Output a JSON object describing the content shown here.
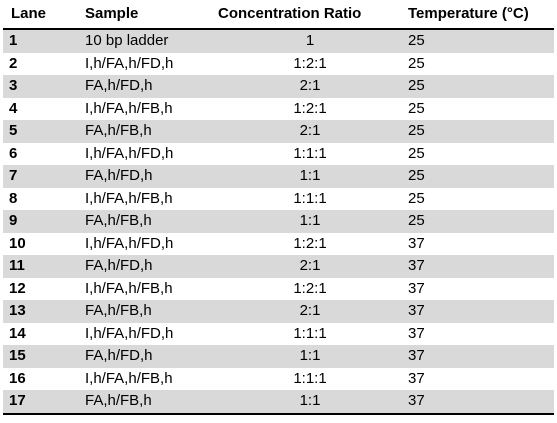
{
  "table": {
    "headers": {
      "lane": "Lane",
      "sample": "Sample",
      "ratio": "Concentration Ratio",
      "temperature": "Temperature (°C)"
    },
    "rows": [
      {
        "lane": "1",
        "sample": "10 bp ladder",
        "ratio": "1",
        "temperature": "25"
      },
      {
        "lane": "2",
        "sample": "I,h/FA,h/FD,h",
        "ratio": "1:2:1",
        "temperature": "25"
      },
      {
        "lane": "3",
        "sample": "FA,h/FD,h",
        "ratio": "2:1",
        "temperature": "25"
      },
      {
        "lane": "4",
        "sample": "I,h/FA,h/FB,h",
        "ratio": "1:2:1",
        "temperature": "25"
      },
      {
        "lane": "5",
        "sample": "FA,h/FB,h",
        "ratio": "2:1",
        "temperature": "25"
      },
      {
        "lane": "6",
        "sample": "I,h/FA,h/FD,h",
        "ratio": "1:1:1",
        "temperature": "25"
      },
      {
        "lane": "7",
        "sample": "FA,h/FD,h",
        "ratio": "1:1",
        "temperature": "25"
      },
      {
        "lane": "8",
        "sample": "I,h/FA,h/FB,h",
        "ratio": "1:1:1",
        "temperature": "25"
      },
      {
        "lane": "9",
        "sample": "FA,h/FB,h",
        "ratio": "1:1",
        "temperature": "25"
      },
      {
        "lane": "10",
        "sample": "I,h/FA,h/FD,h",
        "ratio": "1:2:1",
        "temperature": "37"
      },
      {
        "lane": "11",
        "sample": "FA,h/FD,h",
        "ratio": "2:1",
        "temperature": "37"
      },
      {
        "lane": "12",
        "sample": "I,h/FA,h/FB,h",
        "ratio": "1:2:1",
        "temperature": "37"
      },
      {
        "lane": "13",
        "sample": "FA,h/FB,h",
        "ratio": "2:1",
        "temperature": "37"
      },
      {
        "lane": "14",
        "sample": "I,h/FA,h/FD,h",
        "ratio": "1:1:1",
        "temperature": "37"
      },
      {
        "lane": "15",
        "sample": "FA,h/FD,h",
        "ratio": "1:1",
        "temperature": "37"
      },
      {
        "lane": "16",
        "sample": "I,h/FA,h/FB,h",
        "ratio": "1:1:1",
        "temperature": "37"
      },
      {
        "lane": "17",
        "sample": "FA,h/FB,h",
        "ratio": "1:1",
        "temperature": "37"
      }
    ],
    "colors": {
      "shaded_row": "#d9d9d9",
      "plain_row": "#ffffff",
      "rule": "#000000"
    }
  }
}
